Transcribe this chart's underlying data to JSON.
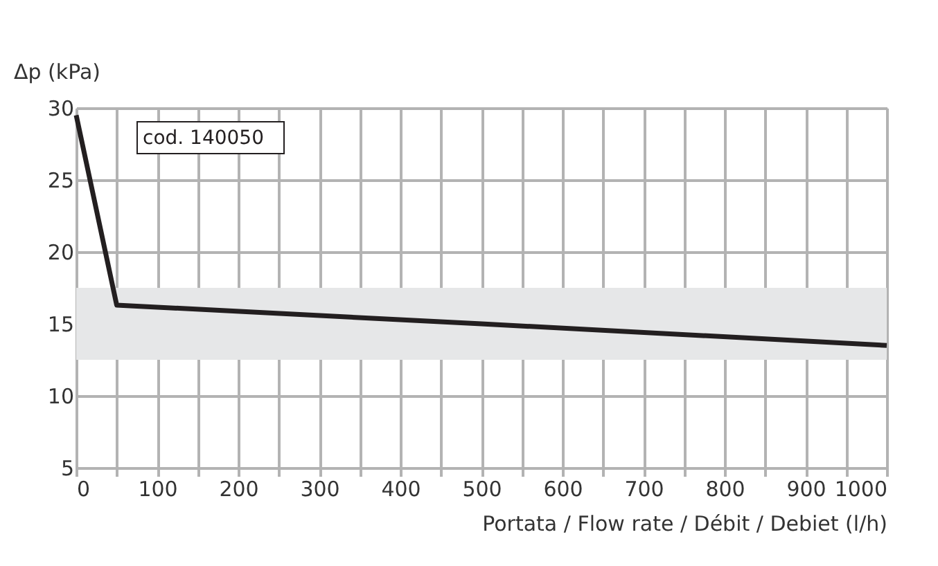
{
  "chart_data": {
    "type": "line",
    "xlabel": "Portata / Flow rate / Débit / Debiet (l/h)",
    "ylabel": "Δp (kPa)",
    "x": [
      0,
      50,
      500,
      1000
    ],
    "series": [
      {
        "color": "#231f20",
        "values": [
          29.5,
          16.3,
          15.0,
          13.5
        ]
      }
    ],
    "xlim": [
      0,
      1000
    ],
    "ylim": [
      5,
      30
    ],
    "xticks": [
      0,
      {
        "value": 50,
        "label": null
      },
      100,
      {
        "value": 150,
        "label": null
      },
      200,
      {
        "value": 250,
        "label": null
      },
      300,
      {
        "value": 350,
        "label": null
      },
      400,
      {
        "value": 450,
        "label": null
      },
      500,
      {
        "value": 550,
        "label": null
      },
      600,
      {
        "value": 650,
        "label": null
      },
      700,
      {
        "value": 750,
        "label": null
      },
      800,
      {
        "value": 850,
        "label": null
      },
      900,
      {
        "value": 950,
        "label": null
      },
      1000
    ],
    "yticks": [
      5,
      10,
      15,
      20,
      25,
      30
    ],
    "bands": [
      {
        "axis": "y",
        "from": 12.5,
        "to": 17.5,
        "color": "#e6e7e8"
      }
    ],
    "annotations": [
      "cod. 140050"
    ],
    "grid": true,
    "marker": "none",
    "line_style": "solid"
  }
}
